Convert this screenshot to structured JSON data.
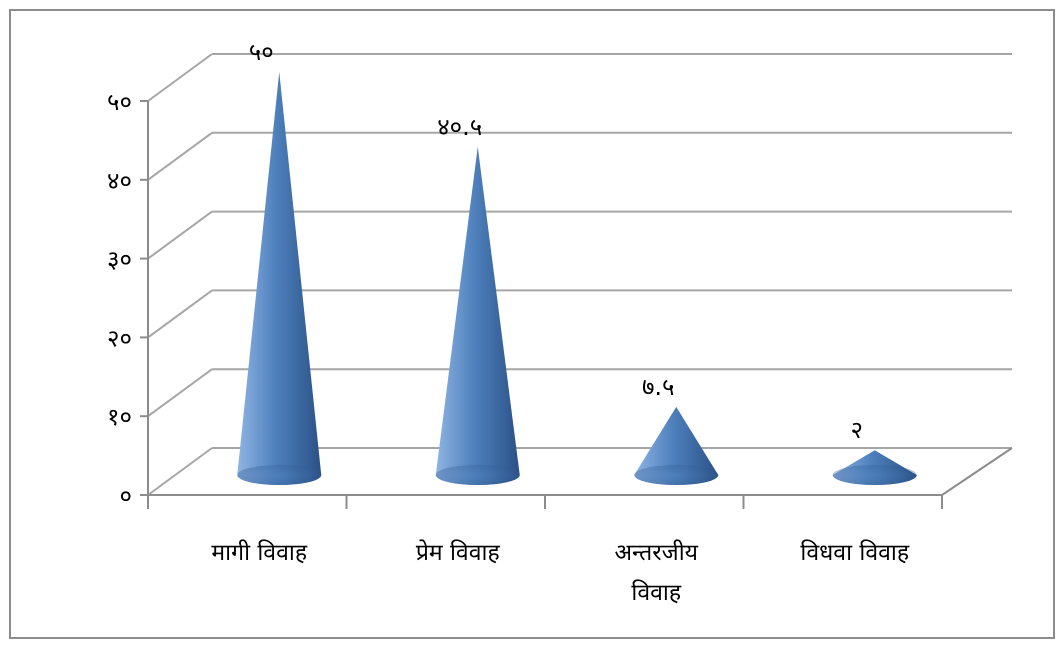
{
  "chart_data": {
    "type": "bar",
    "shape": "3d-cone",
    "categories": [
      [
        "मागी विवाह"
      ],
      [
        "प्रेम विवाह"
      ],
      [
        "अन्तरजीय",
        "विवाह"
      ],
      [
        "विधवा विवाह"
      ]
    ],
    "values": [
      50,
      40.5,
      7.5,
      2
    ],
    "data_labels": [
      "५०",
      "४०.५",
      "७.५",
      "२"
    ],
    "y_ticks": [
      0,
      10,
      20,
      30,
      40,
      50
    ],
    "y_tick_labels": [
      "०",
      "१०",
      "२०",
      "३०",
      "४०",
      "५०"
    ],
    "ylim": [
      0,
      50
    ],
    "grid": true,
    "legend": "none",
    "title": "",
    "xlabel": "",
    "ylabel": "",
    "colors": {
      "cone": "#4f81bd",
      "cone_dark": "#2a5187",
      "cone_light": "#8fb4e3",
      "grid": "#a6a6a6",
      "axis": "#8c8c8c"
    }
  }
}
